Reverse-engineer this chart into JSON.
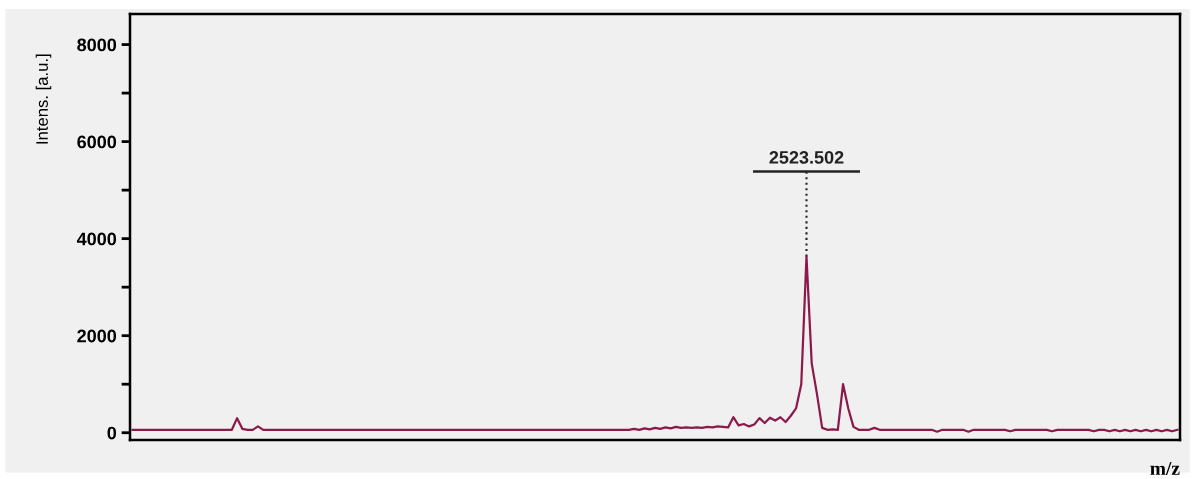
{
  "chart_data": {
    "type": "line",
    "ylabel": "Intens. [a.u.]",
    "xlabel": "m/z",
    "color": "#8b1a4a",
    "categories": [
      null,
      null,
      null,
      null,
      null,
      null,
      null,
      null,
      null,
      null,
      null,
      null,
      null,
      null,
      null,
      null,
      null,
      null,
      null,
      null,
      null,
      null,
      null,
      null,
      null,
      null,
      null,
      null,
      null,
      null,
      null,
      null,
      null,
      null,
      null,
      null,
      null,
      null,
      null,
      null,
      null,
      null,
      null,
      null,
      null,
      null,
      null,
      null,
      null,
      null,
      null,
      null,
      null,
      null,
      null,
      null,
      null,
      null,
      null,
      null,
      null,
      null,
      null,
      null,
      null,
      null,
      null,
      null,
      null,
      null,
      null,
      null,
      null,
      null,
      null,
      null,
      null,
      null,
      null,
      null,
      null,
      null,
      null,
      null,
      null,
      null,
      null,
      null,
      null,
      null,
      null,
      null,
      null,
      null,
      null,
      null,
      null,
      null,
      null,
      null,
      null,
      null,
      null,
      null,
      null,
      null,
      null,
      null,
      null,
      null,
      null,
      null,
      null,
      null,
      null,
      null,
      null,
      null,
      null,
      null,
      null,
      null,
      null,
      null,
      null,
      null,
      null,
      null,
      null,
      null,
      null,
      null,
      null,
      null,
      null,
      null,
      null,
      null,
      null,
      null,
      null,
      null,
      null,
      null,
      null,
      null,
      null,
      null,
      null,
      null,
      null,
      null,
      null,
      null,
      null,
      null,
      null,
      null,
      null,
      null,
      null,
      null,
      null,
      null,
      null,
      null,
      null,
      null,
      null,
      null,
      null,
      null,
      null,
      null,
      null,
      null,
      null,
      null,
      null,
      null,
      null,
      null,
      null,
      null,
      null,
      null,
      null,
      null,
      null,
      null,
      null,
      null,
      null,
      null,
      null,
      null,
      null,
      null,
      null,
      null,
      null
    ],
    "values": [
      60,
      60,
      60,
      60,
      60,
      60,
      60,
      60,
      60,
      60,
      60,
      60,
      60,
      60,
      60,
      60,
      60,
      60,
      60,
      60,
      300,
      80,
      60,
      60,
      130,
      60,
      60,
      60,
      60,
      60,
      60,
      60,
      60,
      60,
      60,
      60,
      60,
      60,
      60,
      60,
      60,
      60,
      60,
      60,
      60,
      60,
      60,
      60,
      60,
      60,
      60,
      60,
      60,
      60,
      60,
      60,
      60,
      60,
      60,
      60,
      60,
      60,
      60,
      60,
      60,
      60,
      60,
      60,
      60,
      60,
      60,
      60,
      60,
      60,
      60,
      60,
      60,
      60,
      60,
      60,
      60,
      60,
      60,
      60,
      60,
      60,
      60,
      60,
      60,
      60,
      60,
      60,
      60,
      60,
      60,
      60,
      80,
      60,
      90,
      70,
      100,
      80,
      110,
      90,
      120,
      100,
      110,
      100,
      110,
      100,
      120,
      110,
      130,
      120,
      110,
      320,
      150,
      180,
      130,
      170,
      300,
      200,
      310,
      250,
      320,
      220,
      350,
      500,
      1000,
      3630,
      1430,
      800,
      100,
      60,
      70,
      60,
      1000,
      500,
      120,
      60,
      60,
      60,
      100,
      60,
      60,
      60,
      60,
      60,
      60,
      60,
      60,
      60,
      60,
      60,
      20,
      60,
      60,
      60,
      60,
      60,
      20,
      60,
      60,
      60,
      60,
      60,
      60,
      60,
      30,
      60,
      60,
      60,
      60,
      60,
      60,
      60,
      30,
      60,
      60,
      60,
      60,
      60,
      60,
      60,
      30,
      60,
      60,
      30,
      60,
      30,
      60,
      30,
      60,
      30,
      60,
      30,
      60,
      30,
      60,
      30,
      60
    ],
    "ylim": [
      -150,
      8630
    ],
    "yticks": [
      0,
      {
        "value": 1000,
        "label": null
      },
      2000,
      {
        "value": 3000,
        "label": null
      },
      4000,
      {
        "value": 5000,
        "label": null
      },
      6000,
      {
        "value": 7000,
        "label": null
      },
      8000
    ],
    "tick_labels": "y",
    "grid": false,
    "legend": false,
    "annotations": [
      "2523.502"
    ]
  }
}
